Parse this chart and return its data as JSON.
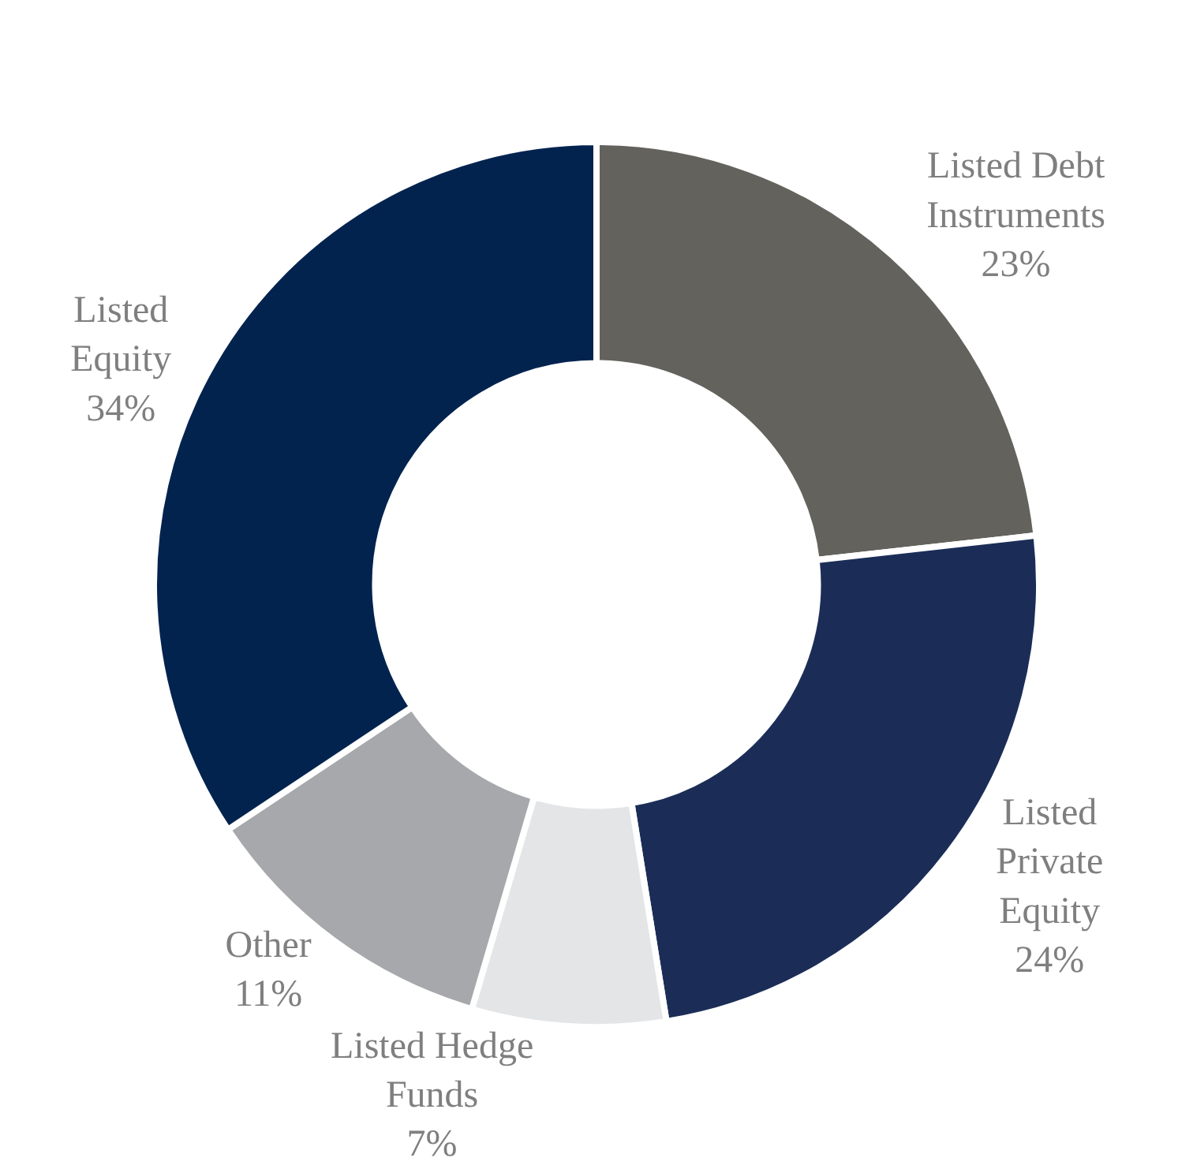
{
  "chart_data": {
    "type": "donut",
    "categories": [
      "Listed Debt Instruments",
      "Listed Private Equity",
      "Listed Hedge Funds",
      "Other",
      "Listed Equity"
    ],
    "values": [
      23,
      24,
      7,
      11,
      34
    ],
    "value_labels": [
      "23%",
      "24%",
      "7%",
      "11%",
      "34%"
    ],
    "colors": [
      "#63625d",
      "#1b2d57",
      "#e4e5e7",
      "#a7a8ac",
      "#03234f"
    ],
    "legend": false
  }
}
